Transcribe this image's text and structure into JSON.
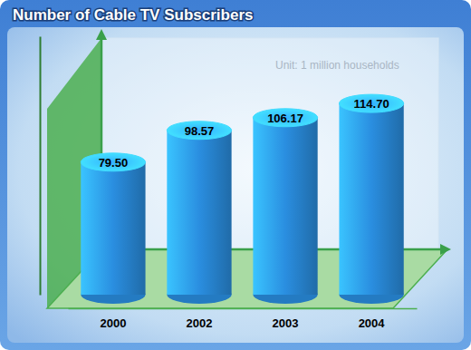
{
  "chart_data": {
    "type": "bar",
    "title": "Number of Cable TV Subscribers",
    "subtitle": "Unit: 1 million households",
    "categories": [
      "2000",
      "2002",
      "2003",
      "2004"
    ],
    "values": [
      79.5,
      98.57,
      106.17,
      114.7
    ],
    "value_labels": [
      "79.50",
      "98.57",
      "106.17",
      "114.70"
    ],
    "color": "#2a8ee0",
    "ylim": [
      0,
      155
    ],
    "data_labels": true,
    "tick_labels": "x"
  }
}
